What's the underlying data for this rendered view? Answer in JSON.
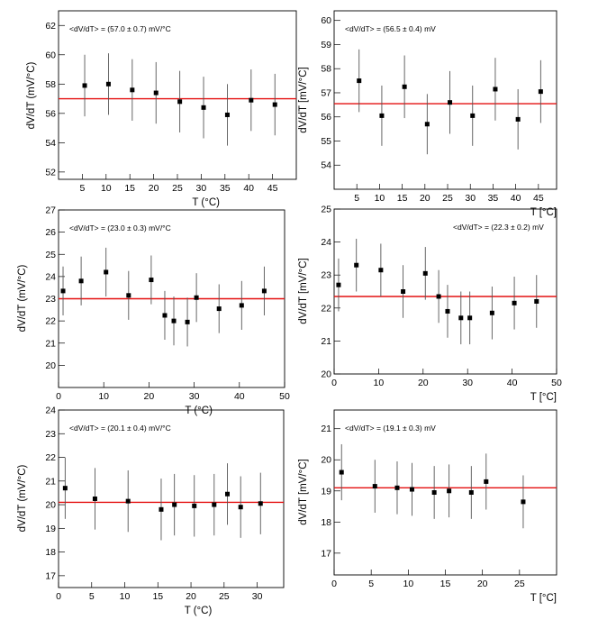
{
  "figure": {
    "description_panels": 6
  },
  "chart_data": [
    {
      "type": "scatter",
      "annotation": "<dV/dT> = (57.0 ± 0.7) mV/°C",
      "xlabel": "T (°C)",
      "ylabel": "dV/dT (mV/°C)",
      "xlim": [
        0,
        50
      ],
      "ylim": [
        51.5,
        63
      ],
      "x_ticks": [
        5,
        10,
        15,
        20,
        25,
        30,
        35,
        40,
        45
      ],
      "y_ticks": [
        52,
        54,
        56,
        58,
        60,
        62
      ],
      "fit_value": 57.0,
      "x": [
        5.5,
        10.5,
        15.5,
        20.5,
        25.5,
        30.5,
        35.5,
        40.5,
        45.5
      ],
      "y": [
        57.9,
        58.0,
        57.6,
        57.4,
        56.8,
        56.4,
        55.9,
        56.9,
        56.6
      ],
      "y_err": [
        2.1,
        2.1,
        2.1,
        2.1,
        2.1,
        2.1,
        2.1,
        2.1,
        2.1
      ]
    },
    {
      "type": "scatter",
      "annotation": "<dV/dT> = (56.5 ± 0.4) mV",
      "xlabel": "T [°C]",
      "ylabel": "dV/dT [mV/°C]",
      "xlim": [
        0,
        49
      ],
      "ylim": [
        53,
        60.4
      ],
      "x_ticks": [
        5,
        10,
        15,
        20,
        25,
        30,
        35,
        40,
        45
      ],
      "y_ticks": [
        54,
        55,
        56,
        57,
        58,
        59,
        60
      ],
      "fit_value": 56.55,
      "x": [
        5.5,
        10.5,
        15.5,
        20.5,
        25.5,
        30.5,
        35.5,
        40.5,
        45.5
      ],
      "y": [
        57.5,
        56.05,
        57.25,
        55.7,
        56.6,
        56.05,
        57.15,
        55.9,
        57.05
      ],
      "y_err": [
        1.3,
        1.25,
        1.3,
        1.25,
        1.3,
        1.25,
        1.3,
        1.25,
        1.3
      ]
    },
    {
      "type": "scatter",
      "annotation": "<dV/dT> = (23.0 ± 0.3) mV/°C",
      "xlabel": "T (°C)",
      "ylabel": "dV/dT (mV/°C)",
      "xlim": [
        0,
        50
      ],
      "ylim": [
        19,
        27
      ],
      "x_ticks": [
        0,
        10,
        20,
        30,
        40,
        50
      ],
      "y_ticks": [
        20,
        21,
        22,
        23,
        24,
        25,
        26,
        27
      ],
      "fit_value": 23.0,
      "x": [
        1,
        5,
        10.5,
        15.5,
        20.5,
        23.5,
        25.5,
        28.5,
        30.5,
        35.5,
        40.5,
        45.5
      ],
      "y": [
        23.35,
        23.8,
        24.2,
        23.15,
        23.85,
        22.25,
        22.0,
        21.95,
        23.05,
        22.55,
        22.7,
        23.35
      ],
      "y_err": [
        1.1,
        1.1,
        1.1,
        1.1,
        1.1,
        1.1,
        1.1,
        1.1,
        1.1,
        1.1,
        1.1,
        1.1
      ]
    },
    {
      "type": "scatter",
      "annotation": "<dV/dT> = (22.3 ± 0.2) mV",
      "xlabel": "T [°C]",
      "ylabel": "dV/dT [mV/°C]",
      "xlim": [
        0,
        50
      ],
      "ylim": [
        20,
        25
      ],
      "x_ticks": [
        0,
        10,
        20,
        30,
        40,
        50
      ],
      "y_ticks": [
        20,
        21,
        22,
        23,
        24,
        25
      ],
      "fit_value": 22.35,
      "x": [
        1,
        5,
        10.5,
        15.5,
        20.5,
        23.5,
        25.5,
        28.5,
        30.5,
        35.5,
        40.5,
        45.5
      ],
      "y": [
        22.7,
        23.3,
        23.15,
        22.5,
        23.05,
        22.35,
        21.9,
        21.7,
        21.7,
        21.85,
        22.15,
        22.2
      ],
      "y_err": [
        0.8,
        0.8,
        0.8,
        0.8,
        0.8,
        0.8,
        0.8,
        0.8,
        0.8,
        0.8,
        0.8,
        0.8
      ]
    },
    {
      "type": "scatter",
      "annotation": "<dV/dT> = (20.1 ± 0.4) mV/°C",
      "xlabel": "T (°C)",
      "ylabel": "dV/dT (mV/°C)",
      "xlim": [
        0,
        34
      ],
      "ylim": [
        16.5,
        24
      ],
      "x_ticks": [
        0,
        5,
        10,
        15,
        20,
        25,
        30
      ],
      "y_ticks": [
        17,
        18,
        19,
        20,
        21,
        22,
        23,
        24
      ],
      "fit_value": 20.1,
      "x": [
        1,
        5.5,
        10.5,
        15.5,
        17.5,
        20.5,
        23.5,
        25.5,
        27.5,
        30.5
      ],
      "y": [
        20.7,
        20.25,
        20.15,
        19.8,
        20.0,
        19.95,
        20.0,
        20.45,
        19.9,
        20.05
      ],
      "y_err": [
        1.3,
        1.3,
        1.3,
        1.3,
        1.3,
        1.3,
        1.3,
        1.3,
        1.3,
        1.3
      ]
    },
    {
      "type": "scatter",
      "annotation": "<dV/dT> = (19.1 ± 0.3) mV",
      "xlabel": "T [°C]",
      "ylabel": "dV/dT [mV/°C]",
      "xlim": [
        0,
        30
      ],
      "ylim": [
        16.3,
        21.6
      ],
      "x_ticks": [
        0,
        5,
        10,
        15,
        20,
        25
      ],
      "y_ticks": [
        17,
        18,
        19,
        20,
        21
      ],
      "fit_value": 19.1,
      "x": [
        1,
        5.5,
        8.5,
        10.5,
        13.5,
        15.5,
        18.5,
        20.5,
        25.5
      ],
      "y": [
        19.6,
        19.15,
        19.1,
        19.05,
        18.95,
        19.0,
        18.95,
        19.3,
        18.65
      ],
      "y_err": [
        0.9,
        0.85,
        0.85,
        0.85,
        0.85,
        0.85,
        0.85,
        0.9,
        0.85
      ]
    }
  ]
}
